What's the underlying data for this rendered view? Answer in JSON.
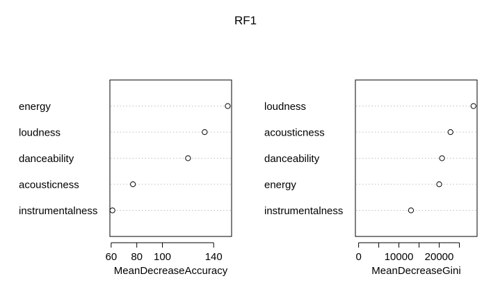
{
  "figure_title": "RF1",
  "chart_data": [
    {
      "type": "scatter",
      "subtype": "dotchart",
      "xlabel": "MeanDecreaseAccuracy",
      "ylabel": "",
      "categories": [
        "energy",
        "loudness",
        "danceability",
        "acousticness",
        "instrumentalness"
      ],
      "values": [
        151,
        133,
        120,
        77,
        61
      ],
      "xlim": [
        59,
        154
      ],
      "xticks": [
        60,
        80,
        100,
        140
      ],
      "grid": "dotted horizontal guide lines",
      "marker": "open circle"
    },
    {
      "type": "scatter",
      "subtype": "dotchart",
      "xlabel": "MeanDecreaseGini",
      "ylabel": "",
      "categories": [
        "loudness",
        "acousticness",
        "danceability",
        "energy",
        "instrumentalness"
      ],
      "values": [
        28500,
        22800,
        20700,
        20000,
        13000
      ],
      "xlim": [
        -800,
        29400
      ],
      "xticks": [
        0,
        5000,
        10000,
        15000,
        20000,
        25000
      ],
      "xtick_labels": [
        "0",
        "",
        "10000",
        "",
        "20000",
        ""
      ],
      "grid": "dotted horizontal guide lines",
      "marker": "open circle"
    }
  ]
}
